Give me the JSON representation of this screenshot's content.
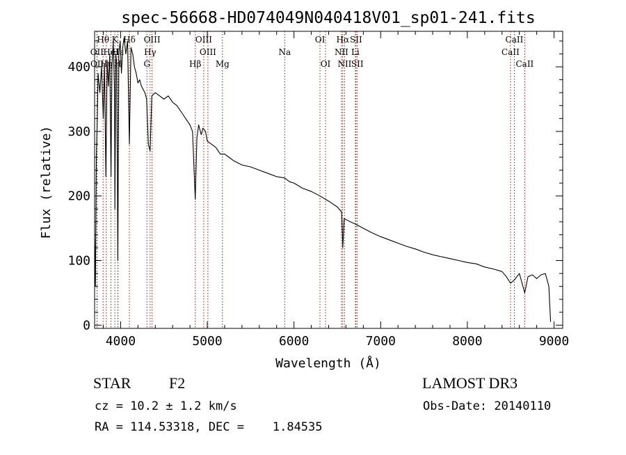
{
  "chart_data": {
    "type": "line",
    "title": "spec-56668-HD074049N040418V01_sp01-241.fits",
    "xlabel": "Wavelength (Å)",
    "ylabel": "Flux (relative)",
    "xlim": [
      3700,
      9100
    ],
    "ylim": [
      -5,
      455
    ],
    "x_ticks": [
      4000,
      5000,
      6000,
      7000,
      8000,
      9000
    ],
    "y_ticks": [
      0,
      100,
      200,
      300,
      400
    ],
    "series": [
      {
        "name": "flux",
        "points": [
          [
            3700,
            140
          ],
          [
            3710,
            60
          ],
          [
            3720,
            260
          ],
          [
            3730,
            310
          ],
          [
            3740,
            390
          ],
          [
            3760,
            360
          ],
          [
            3780,
            400
          ],
          [
            3800,
            320
          ],
          [
            3815,
            405
          ],
          [
            3830,
            230
          ],
          [
            3845,
            410
          ],
          [
            3860,
            370
          ],
          [
            3875,
            420
          ],
          [
            3889,
            230
          ],
          [
            3900,
            400
          ],
          [
            3915,
            440
          ],
          [
            3930,
            360
          ],
          [
            3934,
            180
          ],
          [
            3945,
            420
          ],
          [
            3955,
            405
          ],
          [
            3968,
            100
          ],
          [
            3980,
            420
          ],
          [
            3995,
            440
          ],
          [
            4010,
            390
          ],
          [
            4025,
            430
          ],
          [
            4040,
            445
          ],
          [
            4060,
            420
          ],
          [
            4080,
            440
          ],
          [
            4101,
            280
          ],
          [
            4120,
            430
          ],
          [
            4140,
            420
          ],
          [
            4160,
            400
          ],
          [
            4180,
            390
          ],
          [
            4200,
            375
          ],
          [
            4220,
            380
          ],
          [
            4240,
            370
          ],
          [
            4260,
            365
          ],
          [
            4280,
            360
          ],
          [
            4300,
            350
          ],
          [
            4320,
            280
          ],
          [
            4340,
            270
          ],
          [
            4360,
            355
          ],
          [
            4400,
            360
          ],
          [
            4450,
            355
          ],
          [
            4500,
            350
          ],
          [
            4550,
            355
          ],
          [
            4600,
            345
          ],
          [
            4650,
            340
          ],
          [
            4700,
            330
          ],
          [
            4750,
            320
          ],
          [
            4800,
            310
          ],
          [
            4830,
            300
          ],
          [
            4861,
            195
          ],
          [
            4880,
            290
          ],
          [
            4900,
            310
          ],
          [
            4930,
            295
          ],
          [
            4950,
            305
          ],
          [
            4980,
            300
          ],
          [
            5000,
            285
          ],
          [
            5050,
            280
          ],
          [
            5100,
            275
          ],
          [
            5150,
            265
          ],
          [
            5200,
            265
          ],
          [
            5250,
            260
          ],
          [
            5300,
            255
          ],
          [
            5400,
            248
          ],
          [
            5500,
            245
          ],
          [
            5600,
            240
          ],
          [
            5700,
            235
          ],
          [
            5800,
            230
          ],
          [
            5890,
            228
          ],
          [
            5950,
            222
          ],
          [
            6000,
            220
          ],
          [
            6100,
            212
          ],
          [
            6200,
            207
          ],
          [
            6300,
            200
          ],
          [
            6400,
            192
          ],
          [
            6500,
            183
          ],
          [
            6550,
            175
          ],
          [
            6563,
            120
          ],
          [
            6580,
            165
          ],
          [
            6650,
            160
          ],
          [
            6700,
            157
          ],
          [
            6800,
            150
          ],
          [
            6900,
            143
          ],
          [
            7000,
            137
          ],
          [
            7100,
            132
          ],
          [
            7200,
            127
          ],
          [
            7300,
            122
          ],
          [
            7400,
            118
          ],
          [
            7500,
            113
          ],
          [
            7600,
            109
          ],
          [
            7700,
            106
          ],
          [
            7800,
            103
          ],
          [
            7900,
            100
          ],
          [
            8000,
            97
          ],
          [
            8100,
            95
          ],
          [
            8200,
            90
          ],
          [
            8300,
            87
          ],
          [
            8400,
            83
          ],
          [
            8450,
            75
          ],
          [
            8498,
            65
          ],
          [
            8542,
            70
          ],
          [
            8600,
            80
          ],
          [
            8662,
            50
          ],
          [
            8700,
            75
          ],
          [
            8750,
            78
          ],
          [
            8800,
            72
          ],
          [
            8850,
            78
          ],
          [
            8900,
            80
          ],
          [
            8940,
            60
          ],
          [
            8960,
            5
          ]
        ]
      }
    ],
    "line_lists": [
      {
        "row": 1,
        "labels": [
          {
            "text": "Hθ",
            "wave": 3798
          },
          {
            "text": "K",
            "wave": 3934
          },
          {
            "text": "Hδ",
            "wave": 4101
          },
          {
            "text": "OIII",
            "wave": 4363
          },
          {
            "text": "OIII",
            "wave": 4959
          },
          {
            "text": "OI",
            "wave": 6300
          },
          {
            "text": "Hα",
            "wave": 6563
          },
          {
            "text": "SII",
            "wave": 6716
          },
          {
            "text": "CaII",
            "wave": 8542
          }
        ]
      },
      {
        "row": 2,
        "labels": [
          {
            "text": "OII",
            "wave": 3727
          },
          {
            "text": "HeI",
            "wave": 3889
          },
          {
            "text": "Hε",
            "wave": 3970
          },
          {
            "text": "Hγ",
            "wave": 4340
          },
          {
            "text": "OIII",
            "wave": 5007
          },
          {
            "text": "Na",
            "wave": 5893
          },
          {
            "text": "NII",
            "wave": 6548
          },
          {
            "text": "Li",
            "wave": 6708
          },
          {
            "text": "CaII",
            "wave": 8498
          }
        ]
      },
      {
        "row": 3,
        "labels": [
          {
            "text": "OII",
            "wave": 3729
          },
          {
            "text": "Hη",
            "wave": 3835
          },
          {
            "text": "H",
            "wave": 3968
          },
          {
            "text": "G",
            "wave": 4304
          },
          {
            "text": "Hβ",
            "wave": 4861
          },
          {
            "text": "Mg",
            "wave": 5175
          },
          {
            "text": "OI",
            "wave": 6364
          },
          {
            "text": "NII",
            "wave": 6584
          },
          {
            "text": "SII",
            "wave": 6731
          },
          {
            "text": "CaII",
            "wave": 8662
          }
        ]
      }
    ]
  },
  "info": {
    "object_class": "STAR",
    "subclass": "F2",
    "survey": "LAMOST DR3",
    "cz": "cz = 10.2 ± 1.2 km/s",
    "obs_date": "Obs-Date: 20140110",
    "coords": "RA = 114.53318, DEC =    1.84535"
  }
}
